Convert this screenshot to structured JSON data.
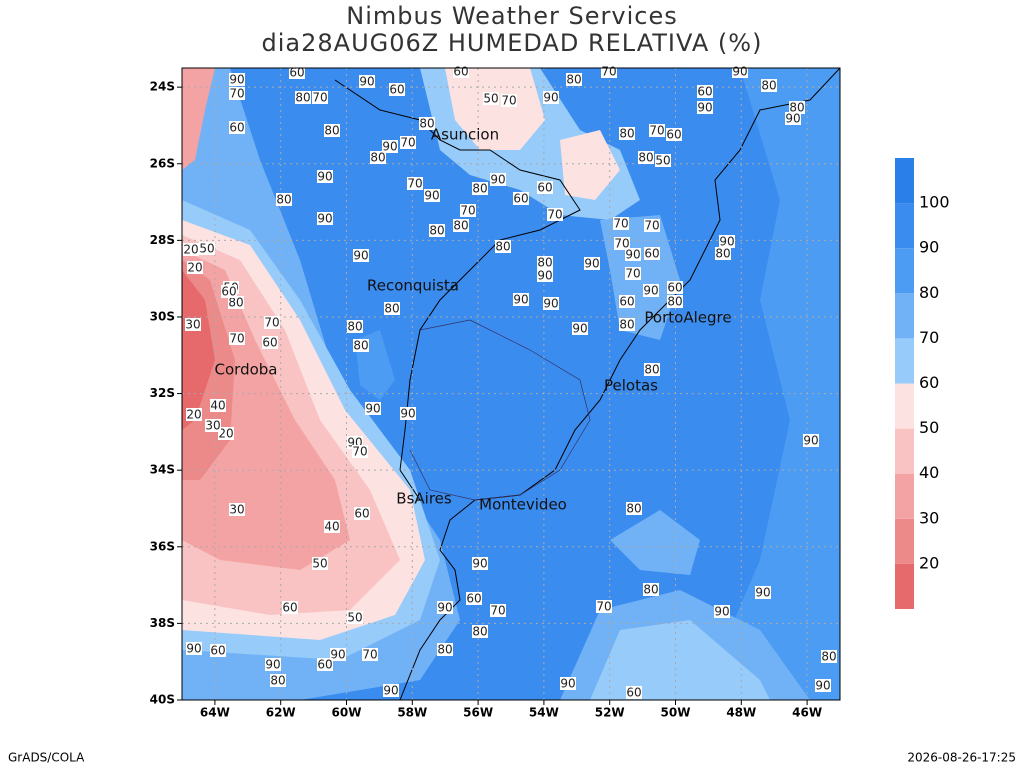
{
  "header": {
    "title": "Nimbus Weather Services",
    "subtitle": "dia28AUG06Z HUMEDAD RELATIVA (%)"
  },
  "map": {
    "xlim": [
      -65,
      -45
    ],
    "ylim": [
      -40,
      -23.5
    ],
    "xticks": [
      {
        "value": -64,
        "label": "64W"
      },
      {
        "value": -62,
        "label": "62W"
      },
      {
        "value": -60,
        "label": "60W"
      },
      {
        "value": -58,
        "label": "58W"
      },
      {
        "value": -56,
        "label": "56W"
      },
      {
        "value": -54,
        "label": "54W"
      },
      {
        "value": -52,
        "label": "52W"
      },
      {
        "value": -50,
        "label": "50W"
      },
      {
        "value": -48,
        "label": "48W"
      },
      {
        "value": -46,
        "label": "46W"
      }
    ],
    "yticks": [
      {
        "value": -24,
        "label": "24S"
      },
      {
        "value": -26,
        "label": "26S"
      },
      {
        "value": -28,
        "label": "28S"
      },
      {
        "value": -30,
        "label": "30S"
      },
      {
        "value": -32,
        "label": "32S"
      },
      {
        "value": -34,
        "label": "34S"
      },
      {
        "value": -36,
        "label": "36S"
      },
      {
        "value": -38,
        "label": "38S"
      },
      {
        "value": -40,
        "label": "40S"
      }
    ],
    "grid": true,
    "cities": [
      "Asuncion",
      "Reconquista",
      "Cordoba",
      "PortoAlegre",
      "Pelotas",
      "BsAires",
      "Montevideo"
    ],
    "contour_labels": [
      90,
      70,
      60,
      90,
      80,
      70,
      60,
      80,
      60,
      80,
      70,
      90,
      80,
      60,
      50,
      70,
      90,
      80,
      70,
      60,
      90,
      90,
      80,
      80,
      90,
      80,
      70,
      60,
      80,
      50,
      90,
      80,
      90,
      70,
      90,
      70,
      80,
      90,
      60,
      60,
      70,
      80,
      80,
      80,
      80,
      90,
      90,
      70,
      70,
      70,
      90,
      60,
      70,
      90,
      80,
      90,
      80,
      80,
      80,
      90,
      90,
      90,
      60,
      80,
      80,
      60,
      80,
      90,
      20,
      50,
      20,
      50,
      80,
      60,
      70,
      70,
      60,
      30,
      40,
      20,
      30,
      20,
      90,
      90,
      90,
      70,
      90,
      30,
      40,
      60,
      50,
      90,
      60,
      70,
      90,
      80,
      50,
      60,
      80,
      80,
      70,
      90,
      90,
      80,
      70,
      90,
      60,
      90,
      60,
      90,
      80,
      90,
      60,
      80,
      90,
      90
    ]
  },
  "colorbar": {
    "levels": [
      20,
      30,
      40,
      50,
      60,
      70,
      80,
      90,
      100
    ],
    "colors": [
      "#e6696b",
      "#ec8a8a",
      "#f3a3a3",
      "#f9c3c3",
      "#fde2e2",
      "#96cbfa",
      "#71b2f6",
      "#4d9cf3",
      "#3b8cef",
      "#2b7fe8"
    ]
  },
  "footer": {
    "left": "GrADS/COLA",
    "right": "2026-08-26-17:25"
  }
}
